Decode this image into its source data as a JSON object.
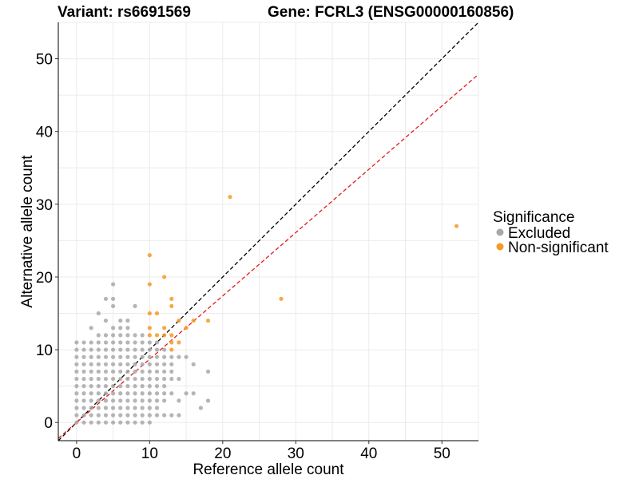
{
  "chart_data": {
    "type": "scatter",
    "title_left": "Variant: rs6691569",
    "title_right": "Gene: FCRL3 (ENSG00000160856)",
    "xlabel": "Reference allele count",
    "ylabel": "Alternative allele count",
    "xlim": [
      -2.5,
      55
    ],
    "ylim": [
      -2.5,
      55
    ],
    "xticks": [
      0,
      10,
      20,
      30,
      40,
      50
    ],
    "yticks": [
      0,
      10,
      20,
      30,
      40,
      50
    ],
    "grid": true,
    "legend": {
      "title": "Significance",
      "position": "right",
      "entries": [
        {
          "label": "Excluded",
          "color": "#a8a8a8"
        },
        {
          "label": "Non-significant",
          "color": "#f59a23"
        }
      ]
    },
    "reference_lines": [
      {
        "slope": 1.0,
        "intercept": 0,
        "color": "#000000",
        "dash": true
      },
      {
        "slope": 0.87,
        "intercept": 0,
        "color": "#e41a1c",
        "dash": true
      }
    ],
    "series": [
      {
        "name": "Excluded",
        "color": "#a8a8a8",
        "points": [
          [
            0,
            0
          ],
          [
            0,
            1
          ],
          [
            0,
            2
          ],
          [
            0,
            3
          ],
          [
            0,
            4
          ],
          [
            0,
            5
          ],
          [
            0,
            6
          ],
          [
            0,
            7
          ],
          [
            0,
            8
          ],
          [
            0,
            9
          ],
          [
            0,
            10
          ],
          [
            0,
            11
          ],
          [
            1,
            0
          ],
          [
            1,
            1
          ],
          [
            1,
            2
          ],
          [
            1,
            3
          ],
          [
            1,
            4
          ],
          [
            1,
            5
          ],
          [
            1,
            6
          ],
          [
            1,
            7
          ],
          [
            1,
            8
          ],
          [
            1,
            9
          ],
          [
            1,
            10
          ],
          [
            1,
            11
          ],
          [
            2,
            0
          ],
          [
            2,
            1
          ],
          [
            2,
            2
          ],
          [
            2,
            3
          ],
          [
            2,
            4
          ],
          [
            2,
            5
          ],
          [
            2,
            6
          ],
          [
            2,
            7
          ],
          [
            2,
            8
          ],
          [
            2,
            9
          ],
          [
            2,
            10
          ],
          [
            2,
            11
          ],
          [
            2,
            13
          ],
          [
            3,
            0
          ],
          [
            3,
            1
          ],
          [
            3,
            2
          ],
          [
            3,
            3
          ],
          [
            3,
            4
          ],
          [
            3,
            5
          ],
          [
            3,
            6
          ],
          [
            3,
            7
          ],
          [
            3,
            8
          ],
          [
            3,
            9
          ],
          [
            3,
            10
          ],
          [
            3,
            11
          ],
          [
            3,
            12
          ],
          [
            3,
            15
          ],
          [
            4,
            0
          ],
          [
            4,
            1
          ],
          [
            4,
            2
          ],
          [
            4,
            3
          ],
          [
            4,
            4
          ],
          [
            4,
            5
          ],
          [
            4,
            6
          ],
          [
            4,
            7
          ],
          [
            4,
            8
          ],
          [
            4,
            9
          ],
          [
            4,
            10
          ],
          [
            4,
            11
          ],
          [
            4,
            12
          ],
          [
            4,
            14
          ],
          [
            4,
            17
          ],
          [
            5,
            0
          ],
          [
            5,
            1
          ],
          [
            5,
            2
          ],
          [
            5,
            3
          ],
          [
            5,
            4
          ],
          [
            5,
            5
          ],
          [
            5,
            6
          ],
          [
            5,
            7
          ],
          [
            5,
            8
          ],
          [
            5,
            9
          ],
          [
            5,
            10
          ],
          [
            5,
            11
          ],
          [
            5,
            12
          ],
          [
            5,
            13
          ],
          [
            5,
            16
          ],
          [
            5,
            17
          ],
          [
            5,
            19
          ],
          [
            6,
            0
          ],
          [
            6,
            1
          ],
          [
            6,
            2
          ],
          [
            6,
            3
          ],
          [
            6,
            4
          ],
          [
            6,
            5
          ],
          [
            6,
            6
          ],
          [
            6,
            7
          ],
          [
            6,
            8
          ],
          [
            6,
            9
          ],
          [
            6,
            10
          ],
          [
            6,
            11
          ],
          [
            6,
            12
          ],
          [
            6,
            13
          ],
          [
            6,
            14
          ],
          [
            7,
            0
          ],
          [
            7,
            1
          ],
          [
            7,
            2
          ],
          [
            7,
            3
          ],
          [
            7,
            4
          ],
          [
            7,
            5
          ],
          [
            7,
            6
          ],
          [
            7,
            7
          ],
          [
            7,
            8
          ],
          [
            7,
            9
          ],
          [
            7,
            10
          ],
          [
            7,
            11
          ],
          [
            7,
            12
          ],
          [
            7,
            13
          ],
          [
            7,
            14
          ],
          [
            8,
            0
          ],
          [
            8,
            1
          ],
          [
            8,
            2
          ],
          [
            8,
            3
          ],
          [
            8,
            4
          ],
          [
            8,
            5
          ],
          [
            8,
            6
          ],
          [
            8,
            7
          ],
          [
            8,
            8
          ],
          [
            8,
            9
          ],
          [
            8,
            10
          ],
          [
            8,
            11
          ],
          [
            8,
            12
          ],
          [
            8,
            16
          ],
          [
            9,
            0
          ],
          [
            9,
            1
          ],
          [
            9,
            2
          ],
          [
            9,
            3
          ],
          [
            9,
            4
          ],
          [
            9,
            5
          ],
          [
            9,
            6
          ],
          [
            9,
            7
          ],
          [
            9,
            8
          ],
          [
            9,
            9
          ],
          [
            9,
            10
          ],
          [
            9,
            11
          ],
          [
            9,
            12
          ],
          [
            10,
            0
          ],
          [
            10,
            1
          ],
          [
            10,
            2
          ],
          [
            10,
            3
          ],
          [
            10,
            4
          ],
          [
            10,
            5
          ],
          [
            10,
            6
          ],
          [
            10,
            7
          ],
          [
            10,
            8
          ],
          [
            10,
            9
          ],
          [
            10,
            10
          ],
          [
            10,
            11
          ],
          [
            11,
            1
          ],
          [
            11,
            2
          ],
          [
            11,
            3
          ],
          [
            11,
            4
          ],
          [
            11,
            5
          ],
          [
            11,
            6
          ],
          [
            11,
            7
          ],
          [
            11,
            8
          ],
          [
            11,
            9
          ],
          [
            11,
            10
          ],
          [
            11,
            11
          ],
          [
            12,
            1
          ],
          [
            12,
            3
          ],
          [
            12,
            4
          ],
          [
            12,
            5
          ],
          [
            12,
            6
          ],
          [
            12,
            7
          ],
          [
            12,
            8
          ],
          [
            12,
            9
          ],
          [
            12,
            10
          ],
          [
            13,
            1
          ],
          [
            13,
            4
          ],
          [
            13,
            6
          ],
          [
            13,
            7
          ],
          [
            13,
            8
          ],
          [
            13,
            9
          ],
          [
            14,
            1
          ],
          [
            14,
            3
          ],
          [
            14,
            6
          ],
          [
            14,
            9
          ],
          [
            15,
            4
          ],
          [
            15,
            9
          ],
          [
            16,
            4
          ],
          [
            16,
            8
          ],
          [
            17,
            2
          ],
          [
            18,
            3
          ],
          [
            18,
            7
          ]
        ]
      },
      {
        "name": "Non-significant",
        "color": "#f59a23",
        "points": [
          [
            10,
            23
          ],
          [
            10,
            19
          ],
          [
            10,
            15
          ],
          [
            10,
            13
          ],
          [
            10,
            12
          ],
          [
            11,
            15
          ],
          [
            11,
            12
          ],
          [
            12,
            20
          ],
          [
            12,
            13
          ],
          [
            12,
            12
          ],
          [
            13,
            17
          ],
          [
            13,
            16
          ],
          [
            13,
            12
          ],
          [
            13,
            11
          ],
          [
            13,
            10
          ],
          [
            14,
            14
          ],
          [
            14,
            11
          ],
          [
            15,
            13
          ],
          [
            16,
            14
          ],
          [
            18,
            14
          ],
          [
            21,
            31
          ],
          [
            28,
            17
          ],
          [
            52,
            27
          ]
        ]
      }
    ]
  }
}
